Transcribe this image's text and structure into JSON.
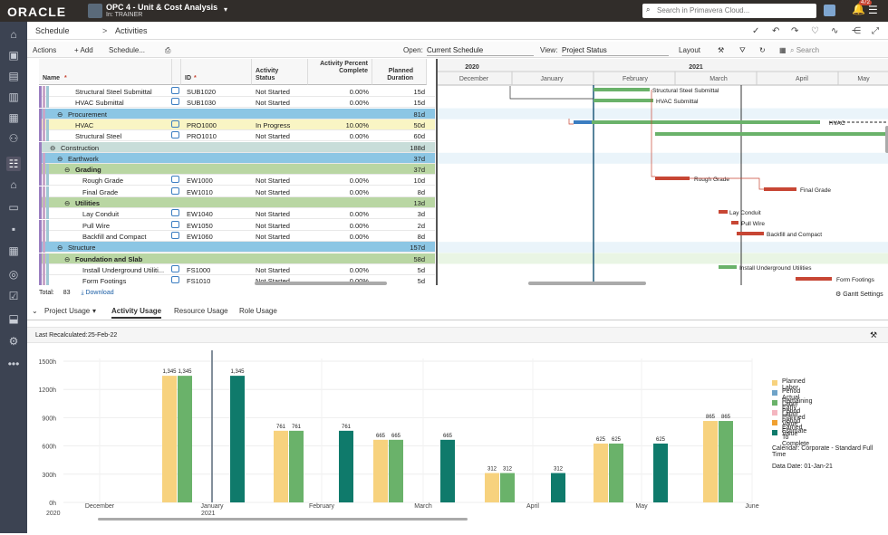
{
  "topbar": {
    "logo": "ORACLE",
    "project_title": "OPC 4 - Unit & Cost Analysis",
    "project_sub": "In: TRAINER",
    "search_placeholder": "Search in Primavera Cloud...",
    "notifications": "472"
  },
  "breadcrumb": {
    "level1": "Schedule",
    "sep": ">",
    "level2": "Activities"
  },
  "toolbar": {
    "actions": "Actions",
    "add": "+ Add",
    "schedule": "Schedule...",
    "open_label": "Open:",
    "open_value": "Current Schedule",
    "view_label": "View:",
    "view_value": "Project Status",
    "layout": "Layout",
    "search": "Search"
  },
  "grid": {
    "headers": {
      "name": "Name",
      "id": "ID",
      "status": "Activity Status",
      "pct": "Activity Percent Complete",
      "dur": "Planned Duration"
    },
    "rows": [
      {
        "type": "act",
        "indent": 3,
        "name": "Structural Steel Submittal",
        "id": "SUB1020",
        "status": "Not Started",
        "pct": "0.00%",
        "dur": "15d"
      },
      {
        "type": "act",
        "indent": 3,
        "name": "HVAC Submittal",
        "id": "SUB1030",
        "status": "Not Started",
        "pct": "0.00%",
        "dur": "15d"
      },
      {
        "type": "wbs",
        "cls": "wbs-a",
        "indent": 2,
        "name": "Procurement",
        "dur": "81d"
      },
      {
        "type": "act",
        "cls": "wbs-y",
        "indent": 3,
        "name": "HVAC",
        "id": "PRO1000",
        "status": "In Progress",
        "pct": "10.00%",
        "dur": "50d"
      },
      {
        "type": "act",
        "indent": 3,
        "name": "Structural Steel",
        "id": "PRO1010",
        "status": "Not Started",
        "pct": "0.00%",
        "dur": "60d"
      },
      {
        "type": "wbs",
        "cls": "wbs-c",
        "indent": 1,
        "name": "Construction",
        "dur": "188d"
      },
      {
        "type": "wbs",
        "cls": "wbs-a",
        "indent": 2,
        "name": "Earthwork",
        "dur": "37d"
      },
      {
        "type": "wbs",
        "cls": "wbs-b",
        "indent": 3,
        "name": "Grading",
        "dur": "37d"
      },
      {
        "type": "act",
        "indent": 4,
        "name": "Rough Grade",
        "id": "EW1000",
        "status": "Not Started",
        "pct": "0.00%",
        "dur": "10d"
      },
      {
        "type": "act",
        "indent": 4,
        "name": "Final Grade",
        "id": "EW1010",
        "status": "Not Started",
        "pct": "0.00%",
        "dur": "8d"
      },
      {
        "type": "wbs",
        "cls": "wbs-b",
        "indent": 3,
        "name": "Utilities",
        "dur": "13d"
      },
      {
        "type": "act",
        "indent": 4,
        "name": "Lay Conduit",
        "id": "EW1040",
        "status": "Not Started",
        "pct": "0.00%",
        "dur": "3d"
      },
      {
        "type": "act",
        "indent": 4,
        "name": "Pull Wire",
        "id": "EW1050",
        "status": "Not Started",
        "pct": "0.00%",
        "dur": "2d"
      },
      {
        "type": "act",
        "indent": 4,
        "name": "Backfill and Compact",
        "id": "EW1060",
        "status": "Not Started",
        "pct": "0.00%",
        "dur": "8d"
      },
      {
        "type": "wbs",
        "cls": "wbs-a",
        "indent": 2,
        "name": "Structure",
        "dur": "157d"
      },
      {
        "type": "wbs",
        "cls": "wbs-b",
        "indent": 3,
        "name": "Foundation and Slab",
        "dur": "58d"
      },
      {
        "type": "act",
        "indent": 4,
        "name": "Install Underground Utiliti...",
        "id": "FS1000",
        "status": "Not Started",
        "pct": "0.00%",
        "dur": "5d"
      },
      {
        "type": "act",
        "indent": 4,
        "name": "Form Footings",
        "id": "FS1010",
        "status": "Not Started",
        "pct": "0.00%",
        "dur": "5d"
      }
    ]
  },
  "gantt": {
    "year1": "2020",
    "year2": "2021",
    "months": [
      "December",
      "January",
      "February",
      "March",
      "April",
      "May"
    ],
    "labels": [
      "Structural Steel Submittal",
      "HVAC Submittal",
      "HVAC",
      "Rough Grade",
      "Final Grade",
      "Lay Conduit",
      "Pull Wire",
      "Backfill and Compact",
      "Install Underground Utilities",
      "Form Footings"
    ]
  },
  "footer": {
    "total_label": "Total:",
    "total_value": "83",
    "download": "Download",
    "gantt_settings": "Gantt Settings"
  },
  "panel": {
    "dropdown": "Project Usage",
    "tabs": [
      "Activity Usage",
      "Resource Usage",
      "Role Usage"
    ],
    "recalc_label": "Last Recalculated:",
    "recalc_value": "25-Feb-22"
  },
  "chart_data": {
    "type": "bar",
    "ylim": [
      0,
      1500
    ],
    "yticks": [
      "0h",
      "300h",
      "600h",
      "900h",
      "1200h",
      "1500h"
    ],
    "xticks": [
      "December",
      "January",
      "February",
      "March",
      "April",
      "May",
      "June"
    ],
    "xyear": [
      "2020",
      "2021"
    ],
    "groups": [
      {
        "planned": 1345,
        "remaining": 1345,
        "etc": 1345
      },
      {
        "planned": 761,
        "remaining": 761,
        "etc": 761
      },
      {
        "planned": 665,
        "remaining": 665,
        "etc": 665
      },
      {
        "planned": 312,
        "remaining": 312,
        "etc": 312
      },
      {
        "planned": 625,
        "remaining": 625,
        "etc": 625
      },
      {
        "planned": 865,
        "remaining": 865,
        "etc": null
      }
    ],
    "series": [
      {
        "name": "Planned Labor",
        "color": "#f7d27e"
      },
      {
        "name": "Period Actual Labor",
        "color": "#6fa3c8"
      },
      {
        "name": "Remaining Early Labor",
        "color": "#6ab26a"
      },
      {
        "name": "Period Planned Value",
        "color": "#f4b6c0"
      },
      {
        "name": "Period Earned Value",
        "color": "#f0a030"
      },
      {
        "name": "Estimate To Complete",
        "color": "#0f7a6b"
      }
    ],
    "calendar": "Calendar: Corporate - Standard Full Time",
    "data_date": "Data Date: 01-Jan-21"
  }
}
